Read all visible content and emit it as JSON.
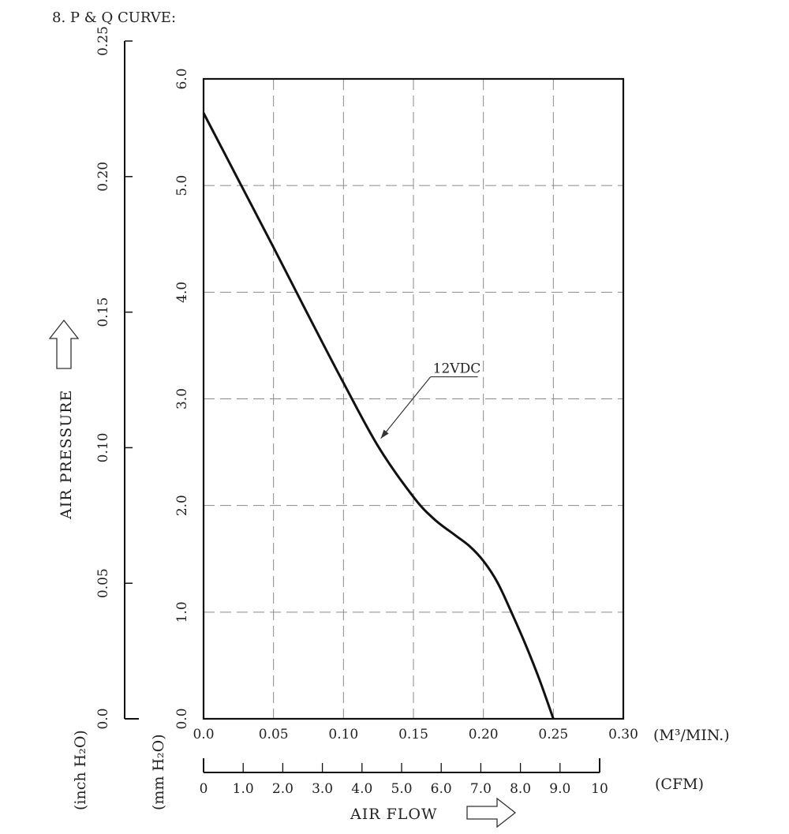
{
  "title": "8. P & Q CURVE:",
  "chart_data": {
    "type": "line",
    "title": "P & Q CURVE",
    "xlabel": "AIR FLOW",
    "ylabel": "AIR PRESSURE",
    "x_unit_primary": "(M³/MIN.)",
    "x_unit_secondary": "(CFM)",
    "y_unit_primary": "(mm H₂O)",
    "y_unit_secondary": "(inch H₂O)",
    "xlim": [
      0.0,
      0.3
    ],
    "ylim": [
      0.0,
      6.0
    ],
    "x_ticks": [
      "0.0",
      "0.05",
      "0.10",
      "0.15",
      "0.20",
      "0.25",
      "0.30"
    ],
    "y_ticks": [
      "0.0",
      "1.0",
      "2.0",
      "3.0",
      "4.0",
      "5.0",
      "6.0"
    ],
    "cfm_lim": [
      0,
      10
    ],
    "cfm_ticks": [
      "0",
      "1.0",
      "2.0",
      "3.0",
      "4.0",
      "5.0",
      "6.0",
      "7.0",
      "8.0",
      "9.0",
      "10"
    ],
    "inch_lim": [
      0.0,
      0.25
    ],
    "inch_ticks": [
      "0.0",
      "0.05",
      "0.10",
      "0.15",
      "0.20",
      "0.25"
    ],
    "grid": true,
    "series": [
      {
        "name": "12VDC",
        "x": [
          0.0,
          0.025,
          0.05,
          0.075,
          0.1,
          0.125,
          0.15,
          0.165,
          0.18,
          0.19,
          0.2,
          0.21,
          0.22,
          0.23,
          0.24,
          0.25
        ],
        "y": [
          5.68,
          5.05,
          4.42,
          3.78,
          3.15,
          2.55,
          2.08,
          1.87,
          1.72,
          1.62,
          1.48,
          1.28,
          1.0,
          0.7,
          0.37,
          0.0
        ]
      }
    ],
    "annotation": {
      "text": "12VDC",
      "x": 0.125,
      "y": 2.6
    }
  }
}
